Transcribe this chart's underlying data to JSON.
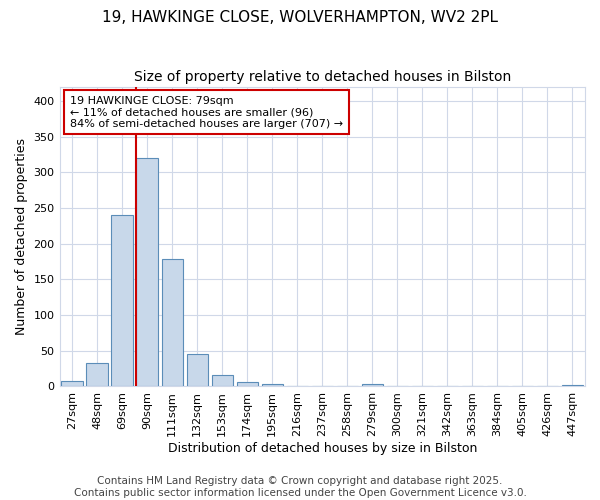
{
  "title_line1": "19, HAWKINGE CLOSE, WOLVERHAMPTON, WV2 2PL",
  "title_line2": "Size of property relative to detached houses in Bilston",
  "xlabel": "Distribution of detached houses by size in Bilston",
  "ylabel": "Number of detached properties",
  "bar_color": "#c8d8ea",
  "bar_edge_color": "#5b8db8",
  "highlight_line_color": "#cc0000",
  "annotation_text": "19 HAWKINGE CLOSE: 79sqm\n← 11% of detached houses are smaller (96)\n84% of semi-detached houses are larger (707) →",
  "annotation_box_color": "#cc0000",
  "annotation_bg": "#ffffff",
  "categories": [
    "27sqm",
    "48sqm",
    "69sqm",
    "90sqm",
    "111sqm",
    "132sqm",
    "153sqm",
    "174sqm",
    "195sqm",
    "216sqm",
    "237sqm",
    "258sqm",
    "279sqm",
    "300sqm",
    "321sqm",
    "342sqm",
    "363sqm",
    "384sqm",
    "405sqm",
    "426sqm",
    "447sqm"
  ],
  "values": [
    8,
    33,
    240,
    320,
    178,
    46,
    16,
    6,
    3,
    0,
    0,
    0,
    4,
    0,
    0,
    0,
    0,
    0,
    0,
    0,
    2
  ],
  "ylim": [
    0,
    420
  ],
  "yticks": [
    0,
    50,
    100,
    150,
    200,
    250,
    300,
    350,
    400
  ],
  "background_color": "#ffffff",
  "grid_color": "#d0d8e8",
  "footer_text": "Contains HM Land Registry data © Crown copyright and database right 2025.\nContains public sector information licensed under the Open Government Licence v3.0.",
  "title_fontsize": 11,
  "subtitle_fontsize": 10,
  "axis_label_fontsize": 9,
  "tick_fontsize": 8,
  "footer_fontsize": 7.5,
  "red_line_index": 3
}
